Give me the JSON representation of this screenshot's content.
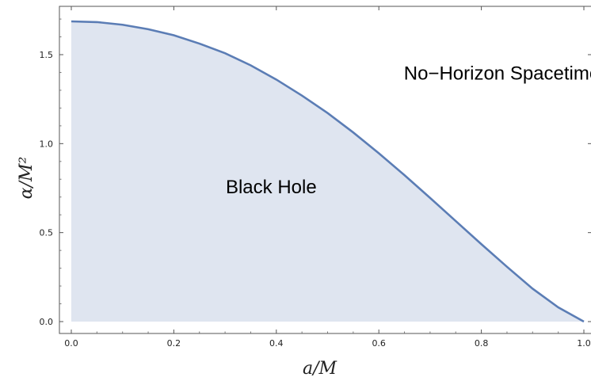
{
  "chart_data": {
    "type": "area",
    "title": "",
    "xlabel": "a/M",
    "ylabel": "α/M²",
    "xlim": [
      0,
      1
    ],
    "ylim": [
      -0.05,
      1.78
    ],
    "x_ticks": [
      "0.0",
      "0.2",
      "0.4",
      "0.6",
      "0.8",
      "1.0"
    ],
    "y_ticks": [
      "0.0",
      "0.5",
      "1.0",
      "1.5"
    ],
    "grid": false,
    "series": [
      {
        "x": [
          0,
          0.05,
          0.1,
          0.15,
          0.2,
          0.25,
          0.3,
          0.35,
          0.4,
          0.45,
          0.5,
          0.55,
          0.6,
          0.65,
          0.7,
          0.75,
          0.8,
          0.85,
          0.9,
          0.95,
          1.0
        ],
        "y": [
          1.687,
          1.683,
          1.668,
          1.643,
          1.609,
          1.562,
          1.508,
          1.44,
          1.36,
          1.27,
          1.172,
          1.063,
          0.946,
          0.823,
          0.695,
          0.565,
          0.435,
          0.308,
          0.185,
          0.08,
          0.0
        ]
      }
    ],
    "line_color": "#5b7db5",
    "fill_color": "#dfe5f0",
    "annotations": [
      {
        "text": "Black Hole",
        "x": 0.39,
        "y": 0.72
      },
      {
        "text": "No−Horizon Spacetime",
        "x": 0.84,
        "y": 1.36
      }
    ]
  }
}
